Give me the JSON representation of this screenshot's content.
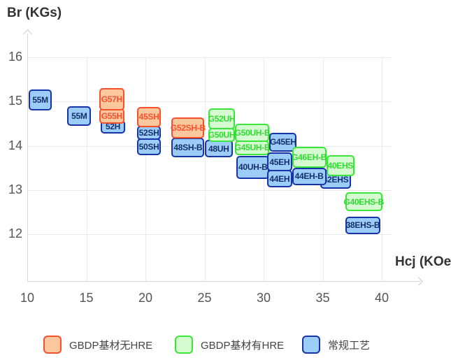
{
  "chart_data": {
    "type": "scatter",
    "variant": "labeled-range-boxes",
    "title": "",
    "xlabel": "Hcj (KOe)",
    "ylabel": "Br (KGs)",
    "x_ticks": [
      10,
      15,
      20,
      25,
      30,
      35,
      40
    ],
    "y_ticks": [
      16,
      15,
      14,
      13,
      12
    ],
    "xlim": [
      10,
      41.5
    ],
    "ylim": [
      11.4,
      16.6
    ],
    "grid": true,
    "legend_position": "bottom",
    "legend": [
      {
        "key": "nohre",
        "label": "GBDP基材无HRE",
        "fill": "#fbc89e",
        "border": "#f5512d",
        "text_color": "#f5512d"
      },
      {
        "key": "hre",
        "label": "GBDP基材有HRE",
        "fill": "#d5fcd1",
        "border": "#39e639",
        "text_color": "#32d932"
      },
      {
        "key": "conv",
        "label": "常规工艺",
        "fill": "#9cccf8",
        "border": "#1733a8",
        "text_color": "#15306e"
      }
    ],
    "items": [
      {
        "label": "55M",
        "key": "conv",
        "hcj": [
          10.1,
          12.1
        ],
        "br": [
          14.8,
          15.27
        ]
      },
      {
        "label": "55M",
        "key": "conv",
        "hcj": [
          13.4,
          15.4
        ],
        "br": [
          14.45,
          14.9
        ]
      },
      {
        "label": "52H",
        "key": "conv",
        "hcj": [
          16.2,
          18.3
        ],
        "br": [
          14.28,
          14.58
        ]
      },
      {
        "label": "G55H",
        "key": "nohre",
        "hcj": [
          16.1,
          18.2
        ],
        "br": [
          14.5,
          14.85
        ]
      },
      {
        "label": "G57H",
        "key": "nohre",
        "hcj": [
          16.1,
          18.2
        ],
        "br": [
          14.8,
          15.3
        ]
      },
      {
        "label": "50SH",
        "key": "conv",
        "hcj": [
          19.3,
          21.3
        ],
        "br": [
          13.79,
          14.17
        ]
      },
      {
        "label": "52SH",
        "key": "conv",
        "hcj": [
          19.3,
          21.3
        ],
        "br": [
          14.13,
          14.45
        ]
      },
      {
        "label": "45SH",
        "key": "nohre",
        "hcj": [
          19.3,
          21.3
        ],
        "br": [
          14.42,
          14.88
        ]
      },
      {
        "label": "48SH-B",
        "key": "conv",
        "hcj": [
          22.2,
          25.0
        ],
        "br": [
          13.74,
          14.18
        ]
      },
      {
        "label": "G52SH-B",
        "key": "nohre",
        "hcj": [
          22.2,
          25.0
        ],
        "br": [
          14.17,
          14.64
        ]
      },
      {
        "label": "48UH",
        "key": "conv",
        "hcj": [
          25.0,
          27.4
        ],
        "br": [
          13.74,
          14.13
        ]
      },
      {
        "label": "G50UH",
        "key": "hre",
        "hcj": [
          25.3,
          27.6
        ],
        "br": [
          14.09,
          14.4
        ]
      },
      {
        "label": "G52UH",
        "key": "hre",
        "hcj": [
          25.3,
          27.6
        ],
        "br": [
          14.37,
          14.85
        ]
      },
      {
        "label": "G45UH-B",
        "key": "hre",
        "hcj": [
          27.6,
          30.5
        ],
        "br": [
          13.79,
          14.12
        ]
      },
      {
        "label": "G50UH-B",
        "key": "hre",
        "hcj": [
          27.6,
          30.5
        ],
        "br": [
          14.09,
          14.5
        ]
      },
      {
        "label": "40UH-B",
        "key": "conv",
        "hcj": [
          27.7,
          30.5
        ],
        "br": [
          13.25,
          13.77
        ]
      },
      {
        "label": "G45EH",
        "key": "conv",
        "hcj": [
          30.5,
          32.8
        ],
        "br": [
          13.87,
          14.29
        ]
      },
      {
        "label": "44EH",
        "key": "conv",
        "hcj": [
          30.3,
          32.4
        ],
        "br": [
          13.06,
          13.45
        ]
      },
      {
        "label": "45EH",
        "key": "conv",
        "hcj": [
          30.3,
          32.4
        ],
        "br": [
          13.42,
          13.85
        ]
      },
      {
        "label": "42EHS",
        "key": "conv",
        "hcj": [
          34.8,
          37.4
        ],
        "br": [
          13.03,
          13.45
        ]
      },
      {
        "label": "44EH-B",
        "key": "conv",
        "hcj": [
          32.4,
          35.3
        ],
        "br": [
          13.11,
          13.5
        ]
      },
      {
        "label": "G46EH-B",
        "key": "hre",
        "hcj": [
          32.4,
          35.3
        ],
        "br": [
          13.5,
          13.98
        ]
      },
      {
        "label": "40EHS",
        "key": "hre",
        "hcj": [
          35.3,
          37.7
        ],
        "br": [
          13.31,
          13.79
        ]
      },
      {
        "label": "G40EHS-B",
        "key": "hre",
        "hcj": [
          36.9,
          40.05
        ],
        "br": [
          12.52,
          12.95
        ]
      },
      {
        "label": "38EHS-B",
        "key": "conv",
        "hcj": [
          36.9,
          39.9
        ],
        "br": [
          12.0,
          12.4
        ]
      }
    ]
  }
}
